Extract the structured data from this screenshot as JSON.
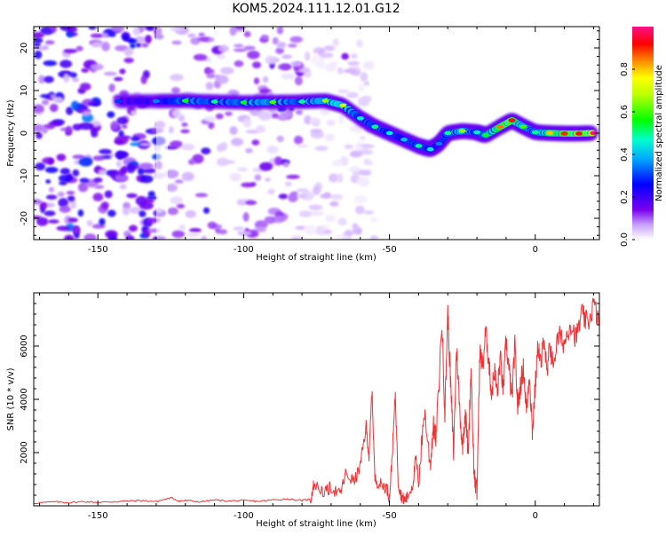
{
  "title": "KOM5.2024.111.12.01.G12",
  "chart_data": [
    {
      "type": "heatmap",
      "xlabel": "Height of straight line (km)",
      "ylabel": "Frequency (Hz)",
      "xlim": [
        -172,
        22
      ],
      "ylim": [
        -25,
        25
      ],
      "xticks": [
        -150,
        -100,
        -50,
        0
      ],
      "yticks": [
        -20,
        -10,
        0,
        10,
        20
      ],
      "colorbar": {
        "label": "Normalized spectral amplitude",
        "range": [
          0,
          1
        ],
        "ticks": [
          0.0,
          0.2,
          0.4,
          0.6,
          0.8
        ],
        "colormap": "rainbow (white-violet-blue-cyan-green-yellow-red-magenta)"
      },
      "ridge": {
        "x": [
          -143,
          -130,
          -120,
          -110,
          -100,
          -90,
          -80,
          -72,
          -66,
          -60,
          -55,
          -50,
          -45,
          -40,
          -36,
          -33,
          -30,
          -25,
          -20,
          -17,
          -12,
          -8,
          -4,
          0,
          5,
          10,
          15,
          20
        ],
        "y": [
          7.5,
          7.5,
          7.6,
          7.4,
          7.2,
          7.3,
          7.4,
          7.6,
          6.5,
          3.5,
          1.5,
          0.0,
          -1.5,
          -3.0,
          -3.8,
          -2.5,
          0.0,
          0.5,
          0.2,
          -0.5,
          1.5,
          3.0,
          1.5,
          0.2,
          0.0,
          -0.1,
          -0.1,
          0.0
        ],
        "amplitude": [
          0.3,
          0.35,
          0.55,
          0.5,
          0.55,
          0.6,
          0.5,
          0.65,
          0.7,
          0.45,
          0.5,
          0.45,
          0.4,
          0.5,
          0.45,
          0.35,
          0.5,
          0.65,
          0.45,
          0.55,
          0.85,
          0.95,
          0.6,
          0.5,
          0.8,
          0.9,
          0.95,
          1.0
        ]
      }
    },
    {
      "type": "line",
      "xlabel": "Height of straight line (km)",
      "ylabel": "SNR (10 * v/v)",
      "xlim": [
        -172,
        22
      ],
      "ylim": [
        0,
        8000
      ],
      "xticks": [
        -150,
        -100,
        -50,
        0
      ],
      "yticks": [
        2000,
        4000,
        6000
      ],
      "color": "#ee3333",
      "series": [
        {
          "x": [
            -172,
            -165,
            -160,
            -155,
            -150,
            -145,
            -140,
            -135,
            -130,
            -125,
            -122,
            -120,
            -115,
            -110,
            -105,
            -100,
            -95,
            -90,
            -85,
            -80,
            -77,
            -76,
            -72,
            -70,
            -67,
            -65,
            -62,
            -60,
            -58,
            -57,
            -56,
            -55,
            -53,
            -51,
            -50,
            -49,
            -48,
            -47,
            -46,
            -45,
            -44,
            -42,
            -41,
            -40,
            -38,
            -36,
            -35,
            -34,
            -32,
            -31,
            -30,
            -29,
            -28,
            -27,
            -26,
            -25,
            -24,
            -23,
            -22,
            -21,
            -20,
            -19,
            -18,
            -17,
            -16,
            -15,
            -14,
            -13,
            -12,
            -11,
            -10,
            -9,
            -8,
            -7,
            -6,
            -5,
            -4,
            -3,
            -2,
            -1,
            0,
            1,
            2,
            3,
            4,
            5,
            6,
            8,
            10,
            12,
            14,
            16,
            18,
            20,
            22
          ],
          "y": [
            100,
            150,
            120,
            160,
            130,
            150,
            180,
            200,
            160,
            300,
            180,
            200,
            150,
            220,
            180,
            200,
            170,
            220,
            260,
            200,
            250,
            800,
            500,
            700,
            400,
            1200,
            900,
            1500,
            3000,
            1800,
            4400,
            1000,
            800,
            700,
            300,
            2000,
            4200,
            900,
            400,
            200,
            300,
            800,
            1800,
            900,
            3600,
            1500,
            3000,
            2500,
            6900,
            3500,
            7300,
            4500,
            2000,
            6000,
            3800,
            2200,
            3600,
            2000,
            5200,
            1200,
            400,
            5800,
            5200,
            6600,
            5500,
            4200,
            5100,
            4200,
            5600,
            4300,
            6200,
            5100,
            4000,
            6000,
            3700,
            4600,
            5200,
            3500,
            5000,
            2800,
            4500,
            6100,
            5200,
            6500,
            4800,
            6100,
            5300,
            6400,
            6100,
            6900,
            6300,
            7200,
            6800,
            7600,
            6800
          ]
        }
      ]
    }
  ]
}
